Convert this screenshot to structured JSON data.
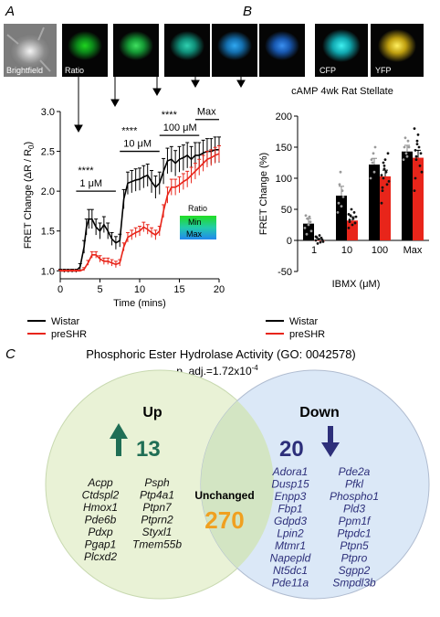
{
  "panelA": {
    "letter": "A",
    "brightfield_label": "Brightfield",
    "ratio_label": "Ratio",
    "ylabel_prefix": "FRET Change (",
    "ylabel_math": "ΔR / R",
    "ylabel_sub": "0",
    "ylabel_suffix": ")",
    "xlabel": "Time (mins)",
    "scale_title": "Ratio",
    "scale_min": "Min",
    "scale_max": "Max",
    "dose_labels": [
      "1 μM",
      "10 μM",
      "100 μM",
      "Max"
    ],
    "sig_labels": [
      "****",
      "****",
      "****"
    ],
    "legend": [
      "Wistar",
      "preSHR"
    ]
  },
  "panelB": {
    "letter": "B",
    "cfp_label": "CFP",
    "yfp_label": "YFP",
    "title": "cAMP 4wk Rat Stellate",
    "ylabel": "FRET Change (%)",
    "xlabel": "IBMX (μM)",
    "legend": [
      "Wistar",
      "preSHR"
    ]
  },
  "panelC": {
    "letter": "C",
    "title": "Phosphoric Ester Hydrolase Activity (GO: 0042578)",
    "padj_prefix": "p. adj.=1.72x10",
    "padj_exp": "-4",
    "up_label": "Up",
    "up_count": "13",
    "down_label": "Down",
    "down_count": "20",
    "unchanged_label": "Unchanged",
    "unchanged_count": "270",
    "up_genes_col1": [
      "Acpp",
      "Ctdspl2",
      "Hmox1",
      "Pde6b",
      "Pdxp",
      "Pgap1",
      "Plcxd2"
    ],
    "up_genes_col2": [
      "Psph",
      "Ptp4a1",
      "Ptpn7",
      "Ptprn2",
      "Styxl1",
      "Tmem55b"
    ],
    "down_genes_col1": [
      "Adora1",
      "Dusp15",
      "Enpp3",
      "Fbp1",
      "Gdpd3",
      "Lpin2",
      "Mtmr1",
      "Napepld",
      "Nt5dc1",
      "Pde11a"
    ],
    "down_genes_col2": [
      "Pde2a",
      "Pfkl",
      "Phospho1",
      "Pld3",
      "Ppm1f",
      "Ptpdc1",
      "Ptpn5",
      "Ptpro",
      "Sgpp2",
      "Smpdl3b"
    ]
  },
  "colors": {
    "wistar": "#000000",
    "preshr": "#e8251a",
    "up_circle": "#e9f2d6",
    "down_circle": "#dbe8f7",
    "overlap": "#d3e5c3",
    "up_text": "#1f6e55",
    "down_text": "#2d2f7a",
    "unchanged": "#f0a020"
  },
  "chart_data": [
    {
      "type": "line",
      "ylabel": "FRET Change (ΔR / R0)",
      "xlabel": "Time (mins)",
      "xlim": [
        0,
        20
      ],
      "ylim": [
        0.9,
        3.0
      ],
      "xticks": [
        0,
        5,
        10,
        15,
        20
      ],
      "yticks": [
        1.0,
        1.5,
        2.0,
        2.5,
        3.0
      ],
      "series": [
        {
          "name": "Wistar",
          "x": [
            0,
            0.5,
            1,
            1.5,
            2,
            2.5,
            3,
            3.3,
            3.6,
            4,
            4.5,
            5,
            5.5,
            6,
            6.5,
            7,
            7.5,
            8,
            8.5,
            9,
            9.5,
            10,
            10.5,
            11,
            11.5,
            12,
            12.5,
            13,
            13.5,
            14,
            14.5,
            15,
            15.5,
            16,
            16.5,
            17,
            17.5,
            18,
            18.5,
            19,
            19.5,
            20
          ],
          "y": [
            1.0,
            1.0,
            1.0,
            1.0,
            1.0,
            1.05,
            1.3,
            1.55,
            1.65,
            1.65,
            1.55,
            1.5,
            1.58,
            1.5,
            1.4,
            1.35,
            1.38,
            1.9,
            2.1,
            2.12,
            2.14,
            2.15,
            2.18,
            2.2,
            2.12,
            2.05,
            2.1,
            2.25,
            2.38,
            2.4,
            2.35,
            2.4,
            2.42,
            2.45,
            2.4,
            2.45,
            2.45,
            2.48,
            2.5,
            2.5,
            2.52,
            2.52
          ],
          "err": [
            0.02,
            0.02,
            0.02,
            0.02,
            0.02,
            0.04,
            0.08,
            0.1,
            0.12,
            0.12,
            0.1,
            0.1,
            0.1,
            0.1,
            0.08,
            0.08,
            0.08,
            0.12,
            0.14,
            0.14,
            0.14,
            0.14,
            0.14,
            0.14,
            0.14,
            0.14,
            0.14,
            0.16,
            0.16,
            0.16,
            0.16,
            0.16,
            0.16,
            0.16,
            0.16,
            0.16,
            0.16,
            0.16,
            0.16,
            0.16,
            0.16,
            0.16
          ]
        },
        {
          "name": "preSHR",
          "x": [
            0,
            0.5,
            1,
            1.5,
            2,
            2.5,
            3,
            3.5,
            4,
            4.5,
            5,
            5.5,
            6,
            6.5,
            7,
            7.5,
            8,
            8.5,
            9,
            9.5,
            10,
            10.5,
            11,
            11.5,
            12,
            12.5,
            13,
            13.5,
            14,
            14.5,
            15,
            15.5,
            16,
            16.5,
            17,
            17.5,
            18,
            18.5,
            19,
            19.5,
            20
          ],
          "y": [
            1.0,
            1.0,
            1.0,
            1.0,
            1.0,
            1.0,
            1.02,
            1.1,
            1.2,
            1.2,
            1.15,
            1.12,
            1.12,
            1.1,
            1.08,
            1.1,
            1.3,
            1.42,
            1.45,
            1.48,
            1.5,
            1.55,
            1.52,
            1.48,
            1.45,
            1.5,
            1.75,
            1.95,
            2.05,
            2.05,
            2.08,
            2.12,
            2.15,
            2.2,
            2.25,
            2.3,
            2.35,
            2.4,
            2.42,
            2.45,
            2.47
          ],
          "err": [
            0.01,
            0.01,
            0.01,
            0.01,
            0.01,
            0.01,
            0.02,
            0.03,
            0.04,
            0.04,
            0.04,
            0.04,
            0.04,
            0.04,
            0.04,
            0.04,
            0.05,
            0.06,
            0.06,
            0.06,
            0.06,
            0.06,
            0.06,
            0.06,
            0.06,
            0.06,
            0.08,
            0.1,
            0.1,
            0.1,
            0.1,
            0.1,
            0.1,
            0.1,
            0.1,
            0.1,
            0.1,
            0.1,
            0.1,
            0.1,
            0.1
          ]
        }
      ],
      "doses": [
        {
          "label": "1 μM",
          "x_start": 2.0,
          "x_end": 7.0,
          "y": 2.0
        },
        {
          "label": "10 μM",
          "x_start": 7.5,
          "x_end": 12.5,
          "y": 2.5
        },
        {
          "label": "100 μM",
          "x_start": 12.5,
          "x_end": 17.5,
          "y": 2.7
        },
        {
          "label": "Max",
          "x_start": 17.0,
          "x_end": 20.0,
          "y": 2.9
        }
      ]
    },
    {
      "type": "bar",
      "title": "cAMP 4wk Rat Stellate",
      "ylabel": "FRET Change (%)",
      "xlabel": "IBMX (μM)",
      "categories": [
        "1",
        "10",
        "100",
        "Max"
      ],
      "ylim": [
        -50,
        200
      ],
      "yticks": [
        -50,
        0,
        50,
        100,
        150,
        200
      ],
      "series": [
        {
          "name": "Wistar",
          "values": [
            27,
            72,
            122,
            143
          ],
          "err": [
            8,
            15,
            10,
            10
          ]
        },
        {
          "name": "preSHR",
          "values": [
            0,
            32,
            103,
            133
          ],
          "err": [
            3,
            6,
            10,
            12
          ]
        }
      ],
      "points": {
        "Wistar": [
          [
            20,
            40,
            10,
            35,
            25,
            38,
            30,
            15
          ],
          [
            45,
            60,
            90,
            110,
            55,
            80,
            70
          ],
          [
            100,
            130,
            125,
            140,
            110,
            150
          ],
          [
            130,
            150,
            165,
            140,
            135,
            160,
            150
          ]
        ],
        "preSHR": [
          [
            0,
            5,
            -5,
            2,
            8,
            -3,
            4,
            1,
            -2,
            6
          ],
          [
            20,
            30,
            40,
            50,
            25,
            35,
            45,
            28,
            38,
            42,
            33
          ],
          [
            60,
            80,
            100,
            120,
            130,
            110,
            90,
            140,
            95,
            105,
            85,
            125,
            115
          ],
          [
            80,
            100,
            130,
            160,
            170,
            150,
            120,
            140,
            110,
            180,
            145,
            135,
            155
          ]
        ]
      }
    }
  ]
}
